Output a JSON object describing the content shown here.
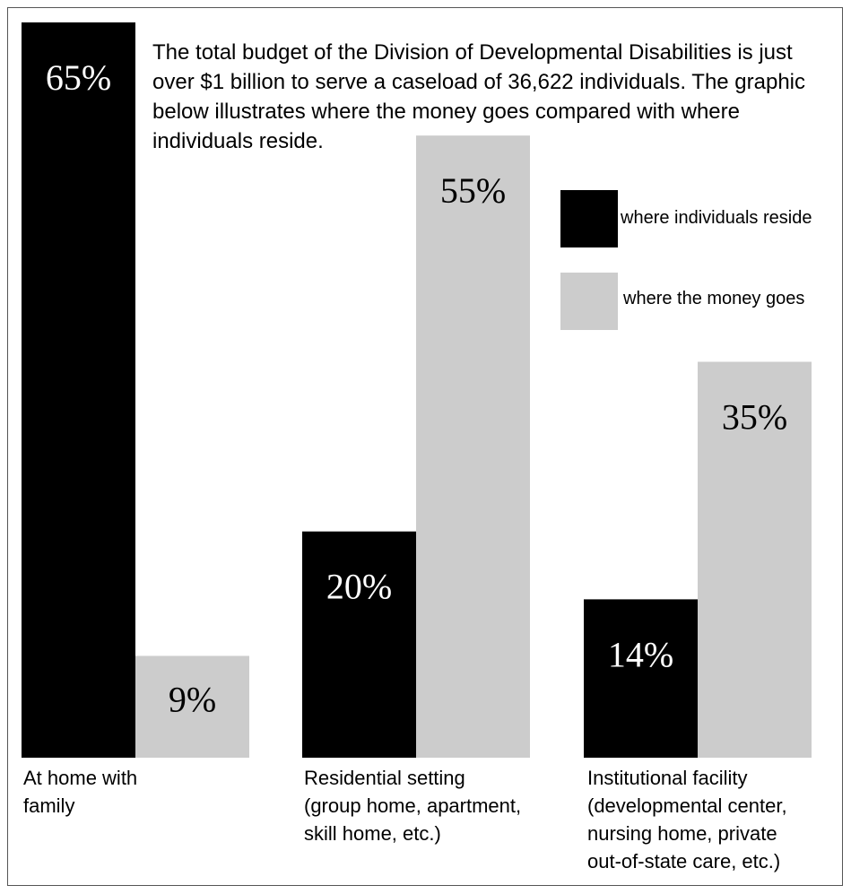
{
  "intro_text": "The total budget of the Division of Developmental Disabilities is just over $1 billion to serve a caseload of 36,622 individuals. The graphic below illustrates where the money goes compared with where individuals reside.",
  "chart_data": {
    "type": "bar",
    "categories": [
      "At home with\nfamily",
      "Residential setting\n(group home, apartment,\nskill home, etc.)",
      "Institutional facility\n(developmental center,\nnursing home, private\nout-of-state care, etc.)"
    ],
    "series": [
      {
        "name": "where individuals reside",
        "color": "#000000",
        "label_color": "#ffffff",
        "values": [
          65,
          20,
          14
        ]
      },
      {
        "name": "where the money goes",
        "color": "#cccccc",
        "label_color": "#000000",
        "values": [
          9,
          55,
          35
        ]
      }
    ],
    "value_suffix": "%",
    "ylim": [
      0,
      65
    ],
    "grid": false,
    "legend_position": "right"
  }
}
